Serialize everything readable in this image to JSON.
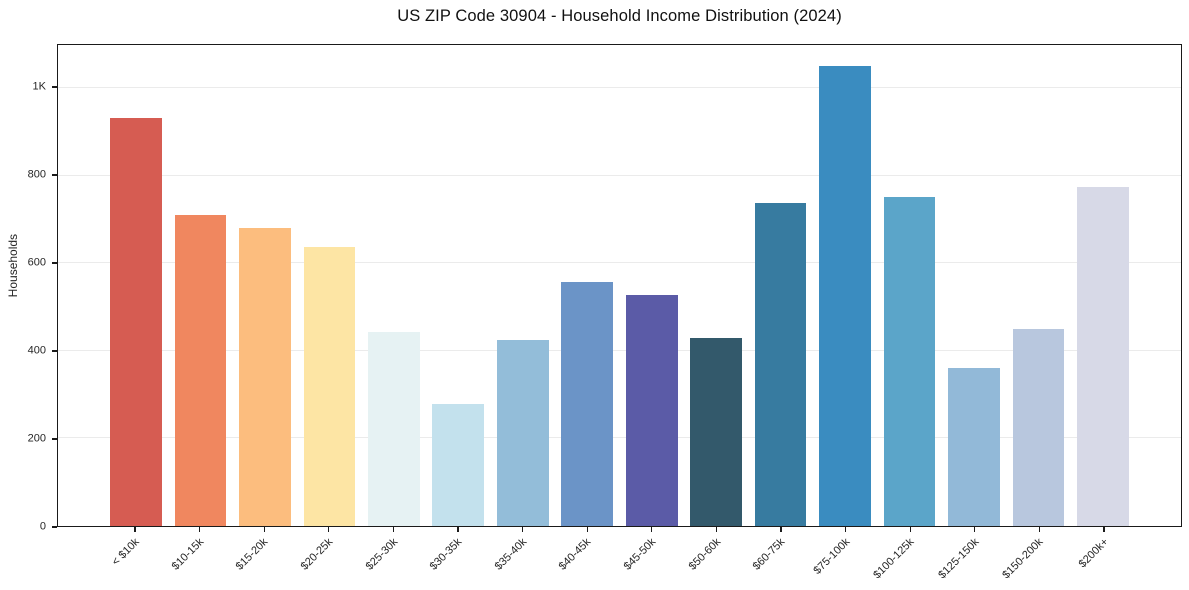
{
  "chart_data": {
    "type": "bar",
    "title": "US ZIP Code 30904 - Household Income Distribution (2024)",
    "xlabel": "",
    "ylabel": "Households",
    "categories": [
      "< $10k",
      "$10-15k",
      "$15-20k",
      "$20-25k",
      "$25-30k",
      "$30-35k",
      "$35-40k",
      "$40-45k",
      "$45-50k",
      "$50-60k",
      "$60-75k",
      "$75-100k",
      "$100-125k",
      "$125-150k",
      "$150-200k",
      "$200k+"
    ],
    "values": [
      932,
      710,
      680,
      638,
      444,
      278,
      424,
      556,
      528,
      429,
      738,
      1050,
      750,
      360,
      450,
      775
    ],
    "bar_colors": [
      "#d65c52",
      "#f0875f",
      "#fcbd7e",
      "#fde5a4",
      "#e6f2f3",
      "#c3e1ed",
      "#93bdd9",
      "#6b94c7",
      "#5b5ba7",
      "#33596b",
      "#377ba0",
      "#3a8cc0",
      "#5ba5c9",
      "#92b9d8",
      "#b8c7de",
      "#d7d9e7"
    ],
    "ylim": [
      0,
      1098
    ],
    "yticks": [
      {
        "value": 0,
        "label": "0"
      },
      {
        "value": 200,
        "label": "200"
      },
      {
        "value": 400,
        "label": "400"
      },
      {
        "value": 600,
        "label": "600"
      },
      {
        "value": 800,
        "label": "800"
      },
      {
        "value": 1000,
        "label": "1K"
      }
    ],
    "grid": "horizontal",
    "legend": "none",
    "colors": {
      "background": "#ffffff",
      "spine": "#1a1a1a",
      "gridline": "#ebebeb",
      "tick_text": "#262626",
      "title_text": "#111111"
    }
  }
}
